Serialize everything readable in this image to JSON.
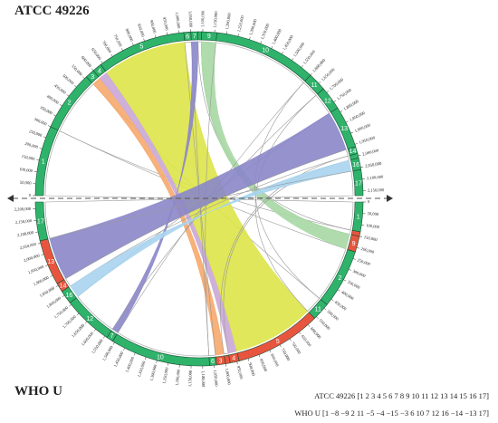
{
  "titles": {
    "top": "ATCC 49226",
    "bottom": "WHO U"
  },
  "legend": [
    "ATCC 49226 [1 2 3 4 5 6 7 8 9 10 11 12 13 14 15 16 17]",
    "WHO U [1 −8 −9 2 11 −5 −4 −15 −3 6 10 7 12 16 −14 −13 17]"
  ],
  "top": {
    "range": [
      0,
      2170000
    ],
    "ticks": [
      {
        "value": 0,
        "label": "0"
      },
      {
        "value": 50000,
        "label": "50,000"
      },
      {
        "value": 100000,
        "label": "100,000"
      },
      {
        "value": 150000,
        "label": "150,000"
      },
      {
        "value": 200000,
        "label": "200,000"
      },
      {
        "value": 250000,
        "label": "250,000"
      },
      {
        "value": 300000,
        "label": "300,000"
      },
      {
        "value": 350000,
        "label": "350,000"
      },
      {
        "value": 400000,
        "label": "400,000"
      },
      {
        "value": 450000,
        "label": "450,000"
      },
      {
        "value": 500000,
        "label": "500,000"
      },
      {
        "value": 550000,
        "label": "550,000"
      },
      {
        "value": 600000,
        "label": "600,000"
      },
      {
        "value": 650000,
        "label": "650,000"
      },
      {
        "value": 700000,
        "label": "700,000"
      },
      {
        "value": 750000,
        "label": "750,000"
      },
      {
        "value": 800000,
        "label": "800,000"
      },
      {
        "value": 850000,
        "label": "850,000"
      },
      {
        "value": 900000,
        "label": "900,000"
      },
      {
        "value": 950000,
        "label": "950,000"
      },
      {
        "value": 1000000,
        "label": "1,000,000"
      },
      {
        "value": 1050000,
        "label": "1,050,000"
      },
      {
        "value": 1100000,
        "label": "1,100,000"
      },
      {
        "value": 1150000,
        "label": "1,150,000"
      },
      {
        "value": 1200000,
        "label": "1,200,000"
      },
      {
        "value": 1250000,
        "label": "1,250,000"
      },
      {
        "value": 1300000,
        "label": "1,300,000"
      },
      {
        "value": 1350000,
        "label": "1,350,000"
      },
      {
        "value": 1400000,
        "label": "1,400,000"
      },
      {
        "value": 1450000,
        "label": "1,450,000"
      },
      {
        "value": 1500000,
        "label": "1,500,000"
      },
      {
        "value": 1550000,
        "label": "1,550,000"
      },
      {
        "value": 1600000,
        "label": "1,600,000"
      },
      {
        "value": 1650000,
        "label": "1,650,000"
      },
      {
        "value": 1700000,
        "label": "1,700,000"
      },
      {
        "value": 1750000,
        "label": "1,750,000"
      },
      {
        "value": 1800000,
        "label": "1,800,000"
      },
      {
        "value": 1850000,
        "label": "1,850,000"
      },
      {
        "value": 1900000,
        "label": "1,900,000"
      },
      {
        "value": 1950000,
        "label": "1,950,000"
      },
      {
        "value": 2000000,
        "label": "2,000,000"
      },
      {
        "value": 2050000,
        "label": "2,050,000"
      },
      {
        "value": 2100000,
        "label": "2,100,000"
      },
      {
        "value": 2150000,
        "label": "2,150,000"
      }
    ],
    "blocks": [
      {
        "label": "1",
        "start": 0,
        "end": 300000,
        "link_color": "#999999"
      },
      {
        "label": "2",
        "start": 300000,
        "end": 560000,
        "link_color": "#999999"
      },
      {
        "label": "3",
        "start": 560000,
        "end": 600000,
        "link_color": "#f6a96b"
      },
      {
        "label": "4",
        "start": 600000,
        "end": 640000,
        "link_color": "#c9a7d6"
      },
      {
        "label": "5",
        "start": 640000,
        "end": 1020000,
        "link_color": "#dde448"
      },
      {
        "label": "6",
        "start": 1020000,
        "end": 1050000,
        "link_color": "#999999"
      },
      {
        "label": "7",
        "start": 1050000,
        "end": 1080000,
        "link_color": "#8a86c9"
      },
      {
        "label": "8",
        "start": 1080000,
        "end": 1095000,
        "link_color": "#999999"
      },
      {
        "label": "9",
        "start": 1095000,
        "end": 1160000,
        "link_color": "#a7d8a4"
      },
      {
        "label": "10",
        "start": 1160000,
        "end": 1600000,
        "link_color": "#999999"
      },
      {
        "label": "11",
        "start": 1600000,
        "end": 1680000,
        "link_color": "#999999"
      },
      {
        "label": "12",
        "start": 1680000,
        "end": 1780000,
        "link_color": "#999999"
      },
      {
        "label": "13",
        "start": 1780000,
        "end": 1960000,
        "link_color": "#8a86c9"
      },
      {
        "label": "14",
        "start": 1960000,
        "end": 1990000,
        "link_color": "#999999"
      },
      {
        "label": "15",
        "start": 1990000,
        "end": 2010000,
        "link_color": "#999999"
      },
      {
        "label": "16",
        "start": 2010000,
        "end": 2060000,
        "link_color": "#a9d4ee"
      },
      {
        "label": "17",
        "start": 2060000,
        "end": 2170000,
        "link_color": "#999999"
      }
    ]
  },
  "bottom": {
    "range": [
      0,
      2230000
    ],
    "ticks": [
      {
        "value": 0,
        "label": "0"
      },
      {
        "value": 50000,
        "label": "50,000"
      },
      {
        "value": 100000,
        "label": "100,000"
      },
      {
        "value": 150000,
        "label": "150,000"
      },
      {
        "value": 200000,
        "label": "200,000"
      },
      {
        "value": 250000,
        "label": "250,000"
      },
      {
        "value": 300000,
        "label": "300,000"
      },
      {
        "value": 350000,
        "label": "350,000"
      },
      {
        "value": 400000,
        "label": "400,000"
      },
      {
        "value": 450000,
        "label": "450,000"
      },
      {
        "value": 500000,
        "label": "500,000"
      },
      {
        "value": 550000,
        "label": "550,000"
      },
      {
        "value": 600000,
        "label": "600,000"
      },
      {
        "value": 650000,
        "label": "650,000"
      },
      {
        "value": 700000,
        "label": "700,000"
      },
      {
        "value": 750000,
        "label": "750,000"
      },
      {
        "value": 800000,
        "label": "800,000"
      },
      {
        "value": 850000,
        "label": "850,000"
      },
      {
        "value": 900000,
        "label": "900,000"
      },
      {
        "value": 950000,
        "label": "950,000"
      },
      {
        "value": 1000000,
        "label": "1,000,000"
      },
      {
        "value": 1050000,
        "label": "1,050,000"
      },
      {
        "value": 1100000,
        "label": "1,100,000"
      },
      {
        "value": 1150000,
        "label": "1,150,000"
      },
      {
        "value": 1200000,
        "label": "1,200,000"
      },
      {
        "value": 1250000,
        "label": "1,250,000"
      },
      {
        "value": 1300000,
        "label": "1,300,000"
      },
      {
        "value": 1350000,
        "label": "1,350,000"
      },
      {
        "value": 1400000,
        "label": "1,400,000"
      },
      {
        "value": 1450000,
        "label": "1,450,000"
      },
      {
        "value": 1500000,
        "label": "1,500,000"
      },
      {
        "value": 1550000,
        "label": "1,550,000"
      },
      {
        "value": 1600000,
        "label": "1,600,000"
      },
      {
        "value": 1650000,
        "label": "1,650,000"
      },
      {
        "value": 1700000,
        "label": "1,700,000"
      },
      {
        "value": 1750000,
        "label": "1,750,000"
      },
      {
        "value": 1800000,
        "label": "1,800,000"
      },
      {
        "value": 1850000,
        "label": "1,850,000"
      },
      {
        "value": 1900000,
        "label": "1,900,000"
      },
      {
        "value": 1950000,
        "label": "1,950,000"
      },
      {
        "value": 2000000,
        "label": "2,000,000"
      },
      {
        "value": 2050000,
        "label": "2,050,000"
      },
      {
        "value": 2100000,
        "label": "2,100,000"
      },
      {
        "value": 2150000,
        "label": "2,150,000"
      },
      {
        "value": 2200000,
        "label": "2,200,000"
      }
    ],
    "blocks": [
      {
        "label": "1",
        "start": 0,
        "end": 130000,
        "inverted": false
      },
      {
        "label": "8",
        "start": 130000,
        "end": 150000,
        "inverted": true
      },
      {
        "label": "9",
        "start": 150000,
        "end": 220000,
        "inverted": true
      },
      {
        "label": "2",
        "start": 220000,
        "end": 480000,
        "inverted": false
      },
      {
        "label": "11",
        "start": 480000,
        "end": 560000,
        "inverted": false
      },
      {
        "label": "5",
        "start": 560000,
        "end": 940000,
        "inverted": true
      },
      {
        "label": "4",
        "start": 940000,
        "end": 980000,
        "inverted": true
      },
      {
        "label": "15",
        "start": 980000,
        "end": 1000000,
        "inverted": true
      },
      {
        "label": "3",
        "start": 1000000,
        "end": 1040000,
        "inverted": true
      },
      {
        "label": "6",
        "start": 1040000,
        "end": 1070000,
        "inverted": false
      },
      {
        "label": "10",
        "start": 1070000,
        "end": 1510000,
        "inverted": false
      },
      {
        "label": "7",
        "start": 1510000,
        "end": 1540000,
        "inverted": false
      },
      {
        "label": "12",
        "start": 1540000,
        "end": 1760000,
        "inverted": false
      },
      {
        "label": "16",
        "start": 1760000,
        "end": 1820000,
        "inverted": false
      },
      {
        "label": "14",
        "start": 1820000,
        "end": 1860000,
        "inverted": true
      },
      {
        "label": "13",
        "start": 1860000,
        "end": 2060000,
        "inverted": true
      },
      {
        "label": "17",
        "start": 2060000,
        "end": 2230000,
        "inverted": false
      }
    ]
  }
}
